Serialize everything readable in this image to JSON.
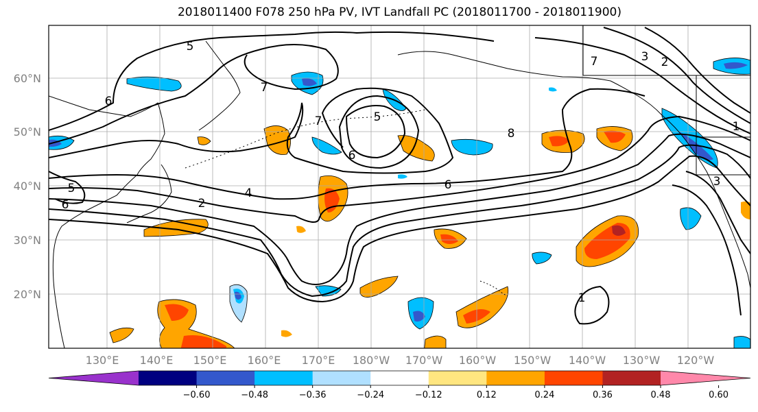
{
  "title": "2018011400 F078 250 hPa PV, IVT Landfall PC (2018011700 - 2018011900)",
  "map": {
    "lat_labels": [
      "60°N",
      "50°N",
      "40°N",
      "30°N",
      "20°N"
    ],
    "lon_labels": [
      "130°E",
      "140°E",
      "150°E",
      "160°E",
      "170°E",
      "180°W",
      "170°W",
      "160°W",
      "150°W",
      "140°W",
      "130°W",
      "120°W"
    ],
    "pv_contour_labels": [
      "5",
      "6",
      "7",
      "7",
      "5",
      "6",
      "4",
      "2",
      "6",
      "5",
      "6",
      "7",
      "3",
      "2",
      "1",
      "8",
      "1",
      "3"
    ]
  },
  "colorbar": {
    "tick_labels": [
      "−0.60",
      "−0.48",
      "−0.36",
      "−0.24",
      "−0.12",
      "0.12",
      "0.24",
      "0.36",
      "0.48",
      "0.60"
    ],
    "colors": [
      "#9932cc",
      "#000080",
      "#3358cc",
      "#00bfff",
      "#b0e0ff",
      "#ffffff",
      "#ffe680",
      "#ffa500",
      "#ff4500",
      "#b22222",
      "#ff88aa"
    ]
  }
}
